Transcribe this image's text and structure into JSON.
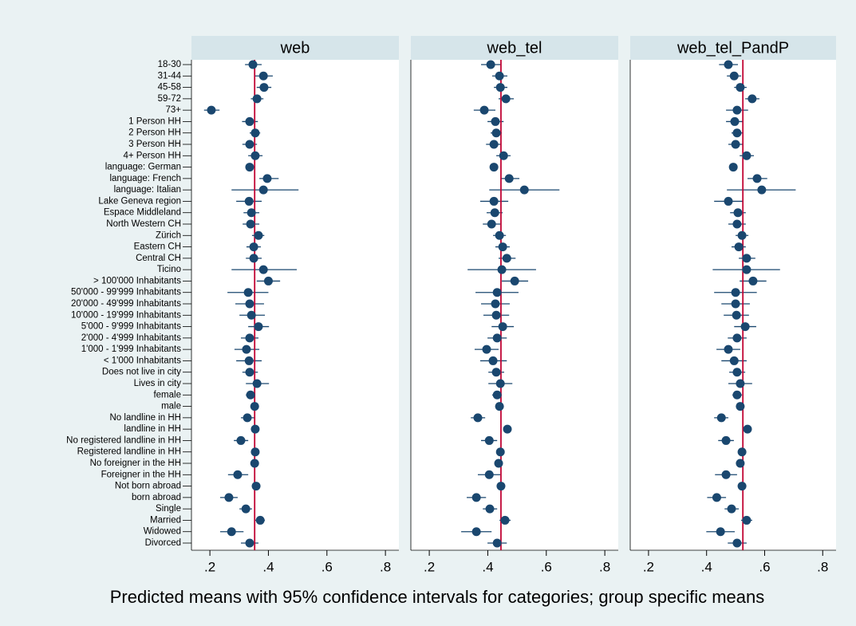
{
  "chart_data": {
    "type": "dot",
    "title": "Predicted means with 95% confidence intervals for categories; group specific means",
    "categories": [
      "18-30",
      "31-44",
      "45-58",
      "59-72",
      "73+",
      "1 Person HH",
      "2 Person HH",
      "3 Person HH",
      "4+ Person HH",
      "language: German",
      "language: French",
      "language: Italian",
      "Lake Geneva region",
      "Espace Middleland",
      "North Western CH",
      "Zürich",
      "Eastern CH",
      "Central CH",
      "Ticino",
      "> 100'000 Inhabitants",
      "50'000 - 99'999 Inhabitants",
      "20'000 - 49'999 Inhabitants",
      "10'000 - 19'999 Inhabitants",
      "5'000 - 9'999 Inhabitants",
      "2'000 - 4'999 Inhabitants",
      "1'000 - 1'999 Inhabitants",
      "< 1'000 Inhabitants",
      "Does not live in city",
      "Lives in city",
      "female",
      "male",
      "No landline in HH",
      "landline in HH",
      "No registered landline in HH",
      "Registered landline in HH",
      "No foreigner in the HH",
      "Foreigner in the HH",
      "Not born abroad",
      "born abroad",
      "Single",
      "Married",
      "Widowed",
      "Divorced"
    ],
    "xlim": [
      0.137,
      0.846
    ],
    "xticks": [
      {
        "value": 0.2,
        "label": ".2"
      },
      {
        "value": 0.4,
        "label": ".4"
      },
      {
        "value": 0.6,
        "label": ".6"
      },
      {
        "value": 0.8,
        "label": ".8"
      }
    ],
    "color": "#1a476f",
    "ref_color": "#c10534",
    "panels": [
      {
        "name": "web",
        "ref_line": 0.353,
        "values": [
          0.347,
          0.383,
          0.385,
          0.361,
          0.205,
          0.336,
          0.355,
          0.336,
          0.355,
          0.336,
          0.396,
          0.383,
          0.334,
          0.342,
          0.339,
          0.366,
          0.35,
          0.35,
          0.383,
          0.4,
          0.331,
          0.336,
          0.342,
          0.366,
          0.336,
          0.325,
          0.334,
          0.336,
          0.361,
          0.339,
          0.353,
          0.328,
          0.355,
          0.306,
          0.355,
          0.353,
          0.295,
          0.358,
          0.265,
          0.323,
          0.372,
          0.274,
          0.336
        ],
        "lower": [
          0.32,
          0.355,
          0.36,
          0.34,
          0.18,
          0.31,
          0.336,
          0.311,
          0.331,
          0.328,
          0.369,
          0.274,
          0.29,
          0.315,
          0.312,
          0.344,
          0.325,
          0.323,
          0.274,
          0.36,
          0.26,
          0.287,
          0.301,
          0.331,
          0.306,
          0.284,
          0.29,
          0.311,
          0.323,
          0.323,
          0.342,
          0.306,
          0.347,
          0.282,
          0.344,
          0.342,
          0.262,
          0.347,
          0.235,
          0.301,
          0.355,
          0.235,
          0.306
        ],
        "upper": [
          0.377,
          0.415,
          0.41,
          0.383,
          0.233,
          0.364,
          0.372,
          0.361,
          0.38,
          0.347,
          0.435,
          0.503,
          0.377,
          0.369,
          0.369,
          0.386,
          0.374,
          0.377,
          0.497,
          0.44,
          0.4,
          0.385,
          0.388,
          0.402,
          0.366,
          0.369,
          0.377,
          0.364,
          0.402,
          0.355,
          0.364,
          0.353,
          0.364,
          0.331,
          0.366,
          0.364,
          0.331,
          0.369,
          0.295,
          0.344,
          0.388,
          0.315,
          0.366
        ]
      },
      {
        "name": "web_tel",
        "ref_line": 0.445,
        "values": [
          0.41,
          0.44,
          0.443,
          0.462,
          0.388,
          0.426,
          0.429,
          0.421,
          0.454,
          0.421,
          0.473,
          0.525,
          0.421,
          0.424,
          0.413,
          0.44,
          0.451,
          0.465,
          0.448,
          0.492,
          0.432,
          0.426,
          0.429,
          0.451,
          0.432,
          0.396,
          0.418,
          0.429,
          0.443,
          0.432,
          0.44,
          0.366,
          0.467,
          0.405,
          0.443,
          0.437,
          0.405,
          0.445,
          0.361,
          0.407,
          0.459,
          0.361,
          0.432
        ],
        "lower": [
          0.377,
          0.415,
          0.421,
          0.437,
          0.352,
          0.399,
          0.41,
          0.394,
          0.429,
          0.41,
          0.443,
          0.405,
          0.374,
          0.396,
          0.383,
          0.418,
          0.426,
          0.437,
          0.331,
          0.448,
          0.358,
          0.377,
          0.385,
          0.413,
          0.399,
          0.355,
          0.374,
          0.402,
          0.402,
          0.415,
          0.429,
          0.342,
          0.456,
          0.377,
          0.429,
          0.424,
          0.366,
          0.432,
          0.328,
          0.383,
          0.44,
          0.309,
          0.399
        ],
        "upper": [
          0.445,
          0.467,
          0.467,
          0.489,
          0.426,
          0.454,
          0.448,
          0.445,
          0.478,
          0.432,
          0.508,
          0.645,
          0.47,
          0.451,
          0.443,
          0.462,
          0.475,
          0.495,
          0.565,
          0.538,
          0.505,
          0.475,
          0.473,
          0.489,
          0.465,
          0.437,
          0.465,
          0.456,
          0.484,
          0.448,
          0.451,
          0.391,
          0.478,
          0.432,
          0.456,
          0.451,
          0.443,
          0.459,
          0.394,
          0.432,
          0.478,
          0.413,
          0.465
        ]
      },
      {
        "name": "web_tel_PandP",
        "ref_line": 0.525,
        "values": [
          0.475,
          0.495,
          0.516,
          0.557,
          0.505,
          0.497,
          0.505,
          0.5,
          0.538,
          0.492,
          0.574,
          0.59,
          0.475,
          0.508,
          0.505,
          0.522,
          0.511,
          0.538,
          0.538,
          0.56,
          0.5,
          0.5,
          0.503,
          0.533,
          0.505,
          0.475,
          0.495,
          0.505,
          0.516,
          0.505,
          0.516,
          0.451,
          0.541,
          0.467,
          0.522,
          0.516,
          0.467,
          0.522,
          0.435,
          0.486,
          0.538,
          0.448,
          0.505
        ],
        "lower": [
          0.443,
          0.47,
          0.495,
          0.533,
          0.467,
          0.467,
          0.486,
          0.475,
          0.514,
          0.481,
          0.541,
          0.47,
          0.426,
          0.481,
          0.475,
          0.5,
          0.486,
          0.511,
          0.421,
          0.514,
          0.426,
          0.451,
          0.459,
          0.495,
          0.473,
          0.434,
          0.451,
          0.478,
          0.475,
          0.489,
          0.505,
          0.426,
          0.53,
          0.44,
          0.508,
          0.503,
          0.429,
          0.508,
          0.402,
          0.462,
          0.519,
          0.399,
          0.473
        ],
        "upper": [
          0.508,
          0.519,
          0.538,
          0.582,
          0.543,
          0.527,
          0.524,
          0.524,
          0.563,
          0.503,
          0.609,
          0.707,
          0.524,
          0.535,
          0.535,
          0.544,
          0.535,
          0.568,
          0.653,
          0.606,
          0.573,
          0.549,
          0.546,
          0.571,
          0.538,
          0.516,
          0.538,
          0.533,
          0.557,
          0.522,
          0.527,
          0.475,
          0.552,
          0.494,
          0.535,
          0.53,
          0.505,
          0.535,
          0.467,
          0.511,
          0.557,
          0.497,
          0.538
        ]
      }
    ]
  }
}
